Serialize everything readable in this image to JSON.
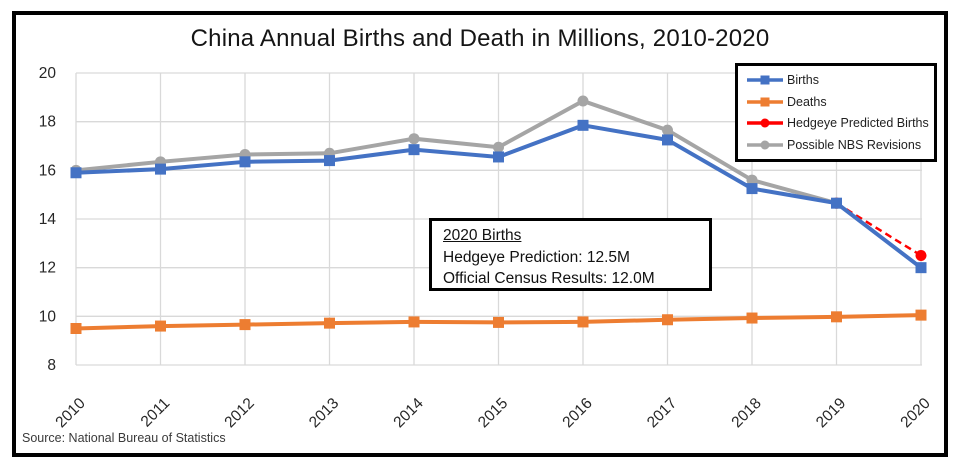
{
  "footer": {
    "source": "Source: National Bureau of Statistics"
  },
  "annotation": {
    "heading": "2020 Births",
    "prediction": "Hedgeye Prediction: 12.5M",
    "official": "Official Census Results: 12.0M"
  },
  "chart_data": {
    "type": "line",
    "title": "China Annual Births and Death in Millions, 2010-2020",
    "x": [
      2010,
      2011,
      2012,
      2013,
      2014,
      2015,
      2016,
      2017,
      2018,
      2019,
      2020
    ],
    "ylim": [
      8,
      20
    ],
    "yticks": [
      8,
      10,
      12,
      14,
      16,
      18,
      20
    ],
    "grid": true,
    "legend_position": "top-right",
    "grid_color": "#d9d9d9",
    "series": [
      {
        "name": "Births",
        "color": "#4472C4",
        "marker": "square",
        "line": "solid",
        "values": [
          15.9,
          16.05,
          16.35,
          16.4,
          16.85,
          16.55,
          17.85,
          17.25,
          15.25,
          14.65,
          12.0
        ]
      },
      {
        "name": "Deaths",
        "color": "#ED7D31",
        "marker": "square",
        "line": "solid",
        "values": [
          9.5,
          9.6,
          9.66,
          9.72,
          9.77,
          9.75,
          9.77,
          9.86,
          9.93,
          9.98,
          10.05
        ]
      },
      {
        "name": "Hedgeye Predicted Births",
        "color": "#FF0000",
        "marker": "circle",
        "line": "dashed",
        "values": [
          null,
          null,
          null,
          null,
          null,
          null,
          null,
          null,
          null,
          14.65,
          12.5
        ]
      },
      {
        "name": "Possible NBS Revisions",
        "color": "#A5A5A5",
        "marker": "circle",
        "line": "solid",
        "values": [
          16.0,
          16.35,
          16.65,
          16.7,
          17.3,
          16.95,
          18.85,
          17.65,
          15.6,
          14.65,
          null
        ]
      }
    ]
  }
}
